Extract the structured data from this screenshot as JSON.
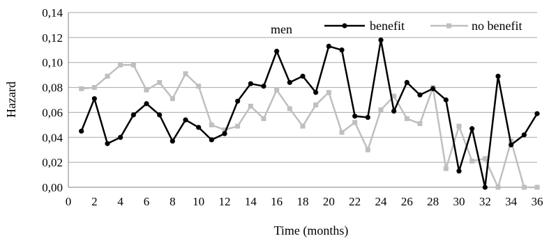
{
  "chart_data": {
    "type": "line",
    "title": "",
    "annotation": "men",
    "xlabel": "Time (months)",
    "ylabel": "Hazard",
    "xlim": [
      0,
      36
    ],
    "ylim": [
      0,
      0.14
    ],
    "x_ticks": [
      0,
      2,
      4,
      6,
      8,
      10,
      12,
      14,
      16,
      18,
      20,
      22,
      24,
      26,
      28,
      30,
      32,
      34,
      36
    ],
    "y_ticks": [
      0,
      0.02,
      0.04,
      0.06,
      0.08,
      0.1,
      0.12,
      0.14
    ],
    "y_tick_labels": [
      "0,00",
      "0,02",
      "0,04",
      "0,06",
      "0,08",
      "0,10",
      "0,12",
      "0,14"
    ],
    "grid": true,
    "legend_position": "top-right",
    "x": [
      1,
      2,
      3,
      4,
      5,
      6,
      7,
      8,
      9,
      10,
      11,
      12,
      13,
      14,
      15,
      16,
      17,
      18,
      19,
      20,
      21,
      22,
      23,
      24,
      25,
      26,
      27,
      28,
      29,
      30,
      31,
      32,
      33,
      34,
      35,
      36
    ],
    "series": [
      {
        "name": "benefit",
        "color": "#000000",
        "marker": "circle",
        "values": [
          0.045,
          0.071,
          0.035,
          0.04,
          0.058,
          0.067,
          0.058,
          0.037,
          0.054,
          0.048,
          0.038,
          0.043,
          0.069,
          0.083,
          0.081,
          0.109,
          0.084,
          0.089,
          0.076,
          0.113,
          0.11,
          0.057,
          0.056,
          0.118,
          0.061,
          0.084,
          0.074,
          0.079,
          0.07,
          0.013,
          0.047,
          0.0,
          0.089,
          0.034,
          0.042,
          0.059
        ]
      },
      {
        "name": "no benefit",
        "color": "#bfbfbf",
        "marker": "square",
        "values": [
          0.079,
          0.08,
          0.089,
          0.098,
          0.098,
          0.078,
          0.084,
          0.071,
          0.091,
          0.081,
          0.05,
          0.046,
          0.049,
          0.065,
          0.055,
          0.078,
          0.063,
          0.049,
          0.066,
          0.076,
          0.044,
          0.052,
          0.03,
          0.062,
          0.073,
          0.055,
          0.051,
          0.08,
          0.015,
          0.049,
          0.021,
          0.023,
          0.0,
          0.037,
          0.0,
          0.0
        ]
      }
    ]
  }
}
